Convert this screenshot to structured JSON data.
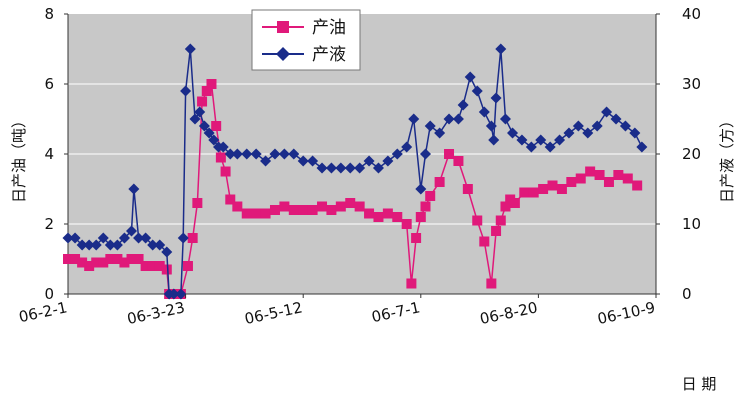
{
  "chart_data": {
    "type": "line",
    "xlabel": "日 期",
    "ylabel_left": "日产油（吨）",
    "ylabel_right": "日产液（方）",
    "ylim_left": [
      0,
      8
    ],
    "ylim_right": [
      0,
      40
    ],
    "yticks_left": [
      "0",
      "2",
      "4",
      "6",
      "8"
    ],
    "yticks_right": [
      "0",
      "10",
      "20",
      "30",
      "40"
    ],
    "xticks": [
      "06-2-1",
      "06-3-23",
      "06-5-12",
      "06-7-1",
      "06-8-20",
      "06-10-9"
    ],
    "xlim": [
      "2006-02-01",
      "2006-10-09"
    ],
    "grid": "horizontal",
    "legend_position": "top-center",
    "colors": {
      "plot_bg": "#c8c8c8",
      "oil": "#e0197a",
      "liquid": "#1a2c8a"
    },
    "series": [
      {
        "name": "产油",
        "axis": "left",
        "marker": "square",
        "color": "#e0197a",
        "x": [
          "2006-02-01",
          "2006-02-04",
          "2006-02-07",
          "2006-02-10",
          "2006-02-13",
          "2006-02-16",
          "2006-02-19",
          "2006-02-22",
          "2006-02-25",
          "2006-02-28",
          "2006-03-03",
          "2006-03-06",
          "2006-03-09",
          "2006-03-12",
          "2006-03-15",
          "2006-03-16",
          "2006-03-18",
          "2006-03-21",
          "2006-03-24",
          "2006-03-26",
          "2006-03-28",
          "2006-03-30",
          "2006-04-01",
          "2006-04-03",
          "2006-04-05",
          "2006-04-07",
          "2006-04-09",
          "2006-04-11",
          "2006-04-14",
          "2006-04-18",
          "2006-04-22",
          "2006-04-26",
          "2006-04-30",
          "2006-05-04",
          "2006-05-08",
          "2006-05-12",
          "2006-05-16",
          "2006-05-20",
          "2006-05-24",
          "2006-05-28",
          "2006-06-01",
          "2006-06-05",
          "2006-06-09",
          "2006-06-13",
          "2006-06-17",
          "2006-06-21",
          "2006-06-25",
          "2006-06-27",
          "2006-06-29",
          "2006-07-01",
          "2006-07-03",
          "2006-07-05",
          "2006-07-09",
          "2006-07-13",
          "2006-07-17",
          "2006-07-21",
          "2006-07-25",
          "2006-07-28",
          "2006-07-31",
          "2006-08-02",
          "2006-08-04",
          "2006-08-06",
          "2006-08-08",
          "2006-08-10",
          "2006-08-14",
          "2006-08-18",
          "2006-08-22",
          "2006-08-26",
          "2006-08-30",
          "2006-09-03",
          "2006-09-07",
          "2006-09-11",
          "2006-09-15",
          "2006-09-19",
          "2006-09-23",
          "2006-09-27",
          "2006-10-01"
        ],
        "values": [
          1.0,
          1.0,
          0.9,
          0.8,
          0.9,
          0.9,
          1.0,
          1.0,
          0.9,
          1.0,
          1.0,
          0.8,
          0.8,
          0.8,
          0.7,
          0.0,
          0.0,
          0.0,
          0.8,
          1.6,
          2.6,
          5.5,
          5.8,
          6.0,
          4.8,
          3.9,
          3.5,
          2.7,
          2.5,
          2.3,
          2.3,
          2.3,
          2.4,
          2.5,
          2.4,
          2.4,
          2.4,
          2.5,
          2.4,
          2.5,
          2.6,
          2.5,
          2.3,
          2.2,
          2.3,
          2.2,
          2.0,
          0.3,
          1.6,
          2.2,
          2.5,
          2.8,
          3.2,
          4.0,
          3.8,
          3.0,
          2.1,
          1.5,
          0.3,
          1.8,
          2.1,
          2.5,
          2.7,
          2.6,
          2.9,
          2.9,
          3.0,
          3.1,
          3.0,
          3.2,
          3.3,
          3.5,
          3.4,
          3.2,
          3.4,
          3.3,
          3.1
        ]
      },
      {
        "name": "产液",
        "axis": "right",
        "marker": "diamond",
        "color": "#1a2c8a",
        "x": [
          "2006-02-01",
          "2006-02-04",
          "2006-02-07",
          "2006-02-10",
          "2006-02-13",
          "2006-02-16",
          "2006-02-19",
          "2006-02-22",
          "2006-02-25",
          "2006-02-28",
          "2006-03-01",
          "2006-03-03",
          "2006-03-06",
          "2006-03-09",
          "2006-03-12",
          "2006-03-15",
          "2006-03-16",
          "2006-03-18",
          "2006-03-21",
          "2006-03-22",
          "2006-03-23",
          "2006-03-25",
          "2006-03-27",
          "2006-03-29",
          "2006-03-31",
          "2006-04-02",
          "2006-04-04",
          "2006-04-06",
          "2006-04-08",
          "2006-04-11",
          "2006-04-14",
          "2006-04-18",
          "2006-04-22",
          "2006-04-26",
          "2006-04-30",
          "2006-05-04",
          "2006-05-08",
          "2006-05-12",
          "2006-05-16",
          "2006-05-20",
          "2006-05-24",
          "2006-05-28",
          "2006-06-01",
          "2006-06-05",
          "2006-06-09",
          "2006-06-13",
          "2006-06-17",
          "2006-06-21",
          "2006-06-25",
          "2006-06-28",
          "2006-07-01",
          "2006-07-03",
          "2006-07-05",
          "2006-07-09",
          "2006-07-13",
          "2006-07-17",
          "2006-07-19",
          "2006-07-22",
          "2006-07-25",
          "2006-07-28",
          "2006-07-31",
          "2006-08-01",
          "2006-08-02",
          "2006-08-04",
          "2006-08-06",
          "2006-08-09",
          "2006-08-13",
          "2006-08-17",
          "2006-08-21",
          "2006-08-25",
          "2006-08-29",
          "2006-09-02",
          "2006-09-06",
          "2006-09-10",
          "2006-09-14",
          "2006-09-18",
          "2006-09-22",
          "2006-09-26",
          "2006-09-30",
          "2006-10-03"
        ],
        "values": [
          8,
          8,
          7,
          7,
          7,
          8,
          7,
          7,
          8,
          9,
          15,
          8,
          8,
          7,
          7,
          6,
          0,
          0,
          0,
          8,
          29,
          35,
          25,
          26,
          24,
          23,
          22,
          21,
          21,
          20,
          20,
          20,
          20,
          19,
          20,
          20,
          20,
          19,
          19,
          18,
          18,
          18,
          18,
          18,
          19,
          18,
          19,
          20,
          21,
          25,
          15,
          20,
          24,
          23,
          25,
          25,
          27,
          31,
          29,
          26,
          24,
          22,
          28,
          35,
          25,
          23,
          22,
          21,
          22,
          21,
          22,
          23,
          24,
          23,
          24,
          26,
          25,
          24,
          23,
          21
        ]
      }
    ]
  }
}
